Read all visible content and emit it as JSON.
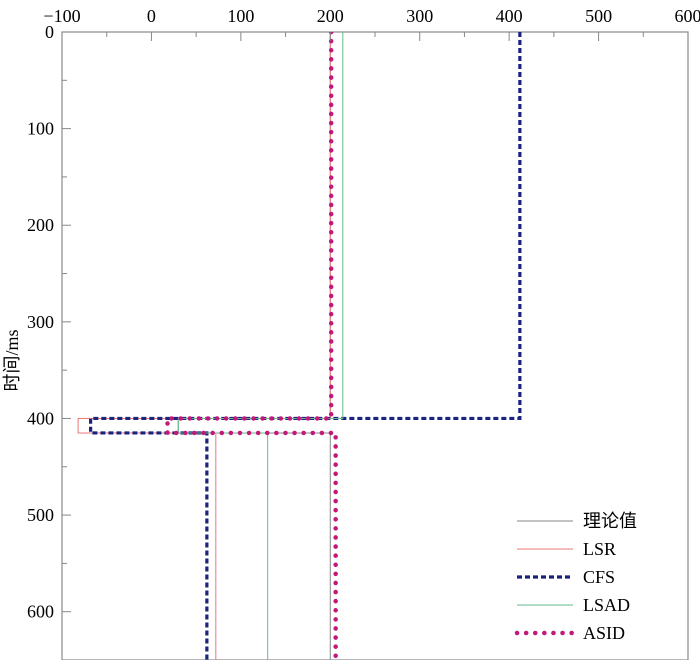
{
  "chart_data": {
    "type": "line",
    "title": "",
    "xlabel": "",
    "ylabel": "时间/ms",
    "xlim": [
      -100,
      600
    ],
    "ylim": [
      0,
      650
    ],
    "y_inverted": true,
    "x_axis_position": "top",
    "x_ticks": [
      -100,
      0,
      100,
      200,
      300,
      400,
      500,
      600
    ],
    "x_tick_labels": [
      "−100",
      "0",
      "100",
      "200",
      "300",
      "400",
      "500",
      "600"
    ],
    "y_ticks": [
      0,
      100,
      200,
      300,
      400,
      500,
      600
    ],
    "y_tick_labels": [
      "0",
      "100",
      "200",
      "300",
      "400",
      "500",
      "600"
    ],
    "grid": false,
    "legend_position": "bottom-right",
    "series": [
      {
        "name": "理论值",
        "color": "#888888",
        "style": "solid",
        "points": [
          [
            200,
            0
          ],
          [
            200,
            400
          ],
          [
            30,
            400
          ],
          [
            30,
            415
          ],
          [
            200,
            415
          ],
          [
            200,
            650
          ]
        ]
      },
      {
        "name": "LSR",
        "color": "#ee7777",
        "style": "solid",
        "points": [
          [
            200,
            0
          ],
          [
            200,
            400
          ],
          [
            -82,
            400
          ],
          [
            -82,
            415
          ],
          [
            72,
            415
          ],
          [
            72,
            650
          ]
        ]
      },
      {
        "name": "CFS",
        "color": "#1a237e",
        "style": "dashed",
        "points": [
          [
            412,
            0
          ],
          [
            412,
            400
          ],
          [
            -68,
            400
          ],
          [
            -68,
            415
          ],
          [
            62,
            415
          ],
          [
            62,
            650
          ]
        ]
      },
      {
        "name": "LSAD",
        "color": "#66bb88",
        "style": "solid",
        "points": [
          [
            214,
            0
          ],
          [
            214,
            400
          ],
          [
            30,
            400
          ],
          [
            30,
            415
          ],
          [
            130,
            415
          ],
          [
            130,
            650
          ]
        ]
      },
      {
        "name": "ASID",
        "color": "#c2187a",
        "style": "dotted",
        "points": [
          [
            201,
            0
          ],
          [
            201,
            400
          ],
          [
            18,
            400
          ],
          [
            18,
            415
          ],
          [
            206,
            415
          ],
          [
            206,
            650
          ]
        ]
      }
    ]
  }
}
